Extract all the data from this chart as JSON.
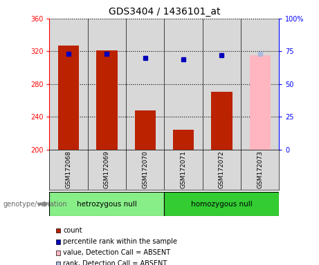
{
  "title": "GDS3404 / 1436101_at",
  "samples": [
    "GSM172068",
    "GSM172069",
    "GSM172070",
    "GSM172071",
    "GSM172072",
    "GSM172073"
  ],
  "count_values": [
    327,
    321,
    248,
    224,
    271,
    null
  ],
  "rank_values": [
    73,
    73,
    70,
    69,
    72,
    null
  ],
  "absent_value": 315,
  "absent_rank": 73,
  "absent_index": 5,
  "ylim_left": [
    200,
    360
  ],
  "ylim_right": [
    0,
    100
  ],
  "yticks_left": [
    200,
    240,
    280,
    320,
    360
  ],
  "yticks_right": [
    0,
    25,
    50,
    75,
    100
  ],
  "groups": [
    {
      "label": "hetrozygous null",
      "indices": [
        0,
        1,
        2
      ],
      "color": "#88EE88"
    },
    {
      "label": "homozygous null",
      "indices": [
        3,
        4,
        5
      ],
      "color": "#33CC33"
    }
  ],
  "bar_color": "#BB2200",
  "absent_bar_color": "#FFB6C1",
  "dot_color": "#0000BB",
  "absent_dot_color": "#AABBDD",
  "bg_color": "#D8D8D8",
  "title_fontsize": 10,
  "tick_fontsize": 7,
  "legend_items": [
    {
      "label": "count",
      "color": "#BB2200"
    },
    {
      "label": "percentile rank within the sample",
      "color": "#0000BB"
    },
    {
      "label": "value, Detection Call = ABSENT",
      "color": "#FFB6C1"
    },
    {
      "label": "rank, Detection Call = ABSENT",
      "color": "#AABBDD"
    }
  ]
}
